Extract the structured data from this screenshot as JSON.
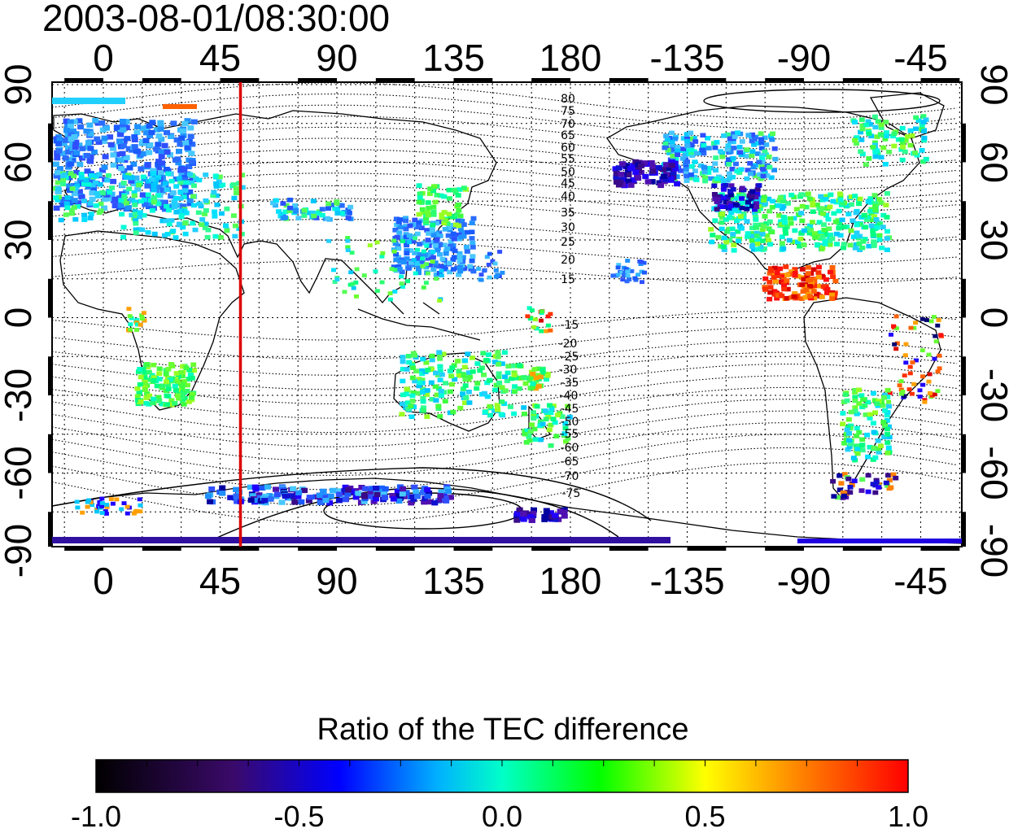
{
  "title": "2003-08-01/08:30:00",
  "map": {
    "lon_labels": [
      "0",
      "45",
      "90",
      "135",
      "180",
      "-135",
      "-90",
      "-45"
    ],
    "lat_labels": [
      "90",
      "60",
      "30",
      "0",
      "-30",
      "-60",
      "-90"
    ],
    "contour_labels_north": [
      "80",
      "75",
      "70",
      "65",
      "60",
      "55",
      "50",
      "45",
      "40",
      "35",
      "30",
      "25",
      "20",
      "15"
    ],
    "contour_labels_south": [
      "-15",
      "-20",
      "-25",
      "-30",
      "-35",
      "-40",
      "-45",
      "-50",
      "-55",
      "-60",
      "-65",
      "-70",
      "-75"
    ],
    "marker_line": {
      "longitude": 53,
      "color": "#dd0000"
    }
  },
  "colorbar": {
    "title": "Ratio of the TEC difference",
    "tick_labels": [
      "-1.0",
      "-0.5",
      "0.0",
      "0.5",
      "1.0"
    ],
    "range": [
      -1.0,
      1.0
    ],
    "stops": [
      "#000000",
      "#3a0a6a",
      "#0000ff",
      "#00ffff",
      "#00ff00",
      "#ffff00",
      "#ff0000"
    ]
  },
  "colors": {
    "frame": "#000000",
    "grid": "#000000",
    "marker": "#dd0000"
  }
}
